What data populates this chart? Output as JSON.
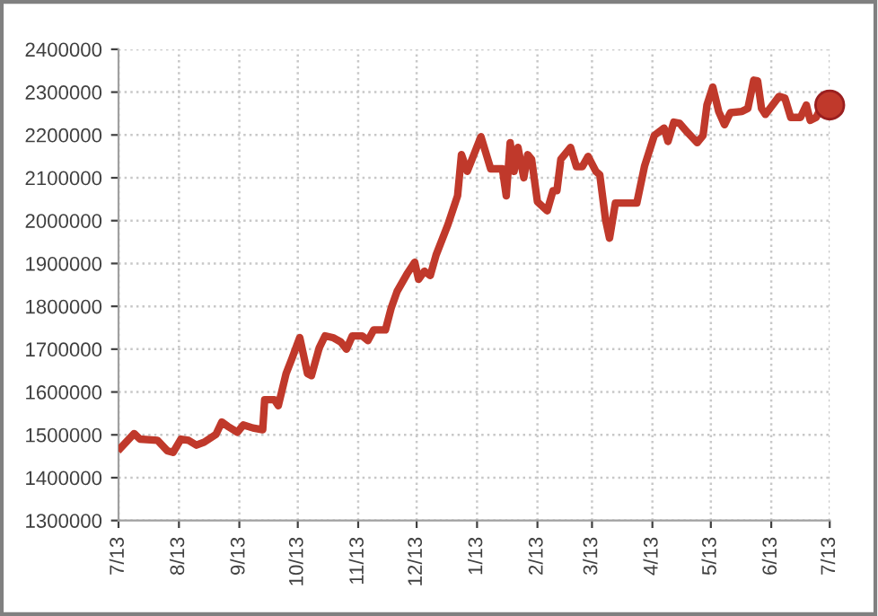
{
  "chart_data": {
    "type": "line",
    "xlim": [
      "2013-07-01",
      "2014-07-01"
    ],
    "ylim": [
      1300000,
      2400000
    ],
    "xticks": [
      {
        "value": "2013-07-01",
        "label": "7/13"
      },
      {
        "value": "2013-08-01",
        "label": "8/13"
      },
      {
        "value": "2013-09-01",
        "label": "9/13"
      },
      {
        "value": "2013-10-01",
        "label": "10/13"
      },
      {
        "value": "2013-11-01",
        "label": "11/13"
      },
      {
        "value": "2013-12-01",
        "label": "12/13"
      },
      {
        "value": "2014-01-01",
        "label": "1/13"
      },
      {
        "value": "2014-02-01",
        "label": "2/13"
      },
      {
        "value": "2014-03-01",
        "label": "3/13"
      },
      {
        "value": "2014-04-01",
        "label": "4/13"
      },
      {
        "value": "2014-05-01",
        "label": "5/13"
      },
      {
        "value": "2014-06-01",
        "label": "6/13"
      },
      {
        "value": "2014-07-01",
        "label": "7/13"
      }
    ],
    "yticks": [
      1300000,
      1400000,
      1500000,
      1600000,
      1700000,
      1800000,
      1900000,
      2000000,
      2100000,
      2200000,
      2300000,
      2400000
    ],
    "grid": true,
    "legend": false,
    "line_style": "solid",
    "series": [
      {
        "color": "#c0392b",
        "x": [
          "2013-07-02",
          "2013-07-09",
          "2013-07-12",
          "2013-07-21",
          "2013-07-26",
          "2013-07-29",
          "2013-08-02",
          "2013-08-06",
          "2013-08-10",
          "2013-08-14",
          "2013-08-20",
          "2013-08-23",
          "2013-08-26",
          "2013-08-31",
          "2013-09-03",
          "2013-09-08",
          "2013-09-13",
          "2013-09-14",
          "2013-09-19",
          "2013-09-21",
          "2013-09-25",
          "2013-09-28",
          "2013-10-02",
          "2013-10-06",
          "2013-10-08",
          "2013-10-12",
          "2013-10-15",
          "2013-10-19",
          "2013-10-23",
          "2013-10-26",
          "2013-10-29",
          "2013-11-03",
          "2013-11-06",
          "2013-11-09",
          "2013-11-15",
          "2013-11-18",
          "2013-11-21",
          "2013-11-26",
          "2013-11-30",
          "2013-12-02",
          "2013-12-05",
          "2013-12-08",
          "2013-12-11",
          "2013-12-17",
          "2013-12-22",
          "2013-12-24",
          "2013-12-27",
          "2014-01-03",
          "2014-01-08",
          "2014-01-14",
          "2014-01-16",
          "2014-01-18",
          "2014-01-20",
          "2014-01-22",
          "2014-01-25",
          "2014-01-27",
          "2014-01-29",
          "2014-02-01",
          "2014-02-06",
          "2014-02-09",
          "2014-02-11",
          "2014-02-13",
          "2014-02-18",
          "2014-02-21",
          "2014-02-24",
          "2014-02-27",
          "2014-03-03",
          "2014-03-05",
          "2014-03-08",
          "2014-03-10",
          "2014-03-13",
          "2014-03-24",
          "2014-03-28",
          "2014-04-02",
          "2014-04-07",
          "2014-04-09",
          "2014-04-12",
          "2014-04-15",
          "2014-04-19",
          "2014-04-24",
          "2014-04-27",
          "2014-04-29",
          "2014-05-02",
          "2014-05-05",
          "2014-05-08",
          "2014-05-11",
          "2014-05-17",
          "2014-05-20",
          "2014-05-23",
          "2014-05-25",
          "2014-05-27",
          "2014-05-29",
          "2014-06-05",
          "2014-06-08",
          "2014-06-11",
          "2014-06-16",
          "2014-06-19",
          "2014-06-21",
          "2014-06-24",
          "2014-06-27",
          "2014-07-01"
        ],
        "values": [
          1469000,
          1503000,
          1490000,
          1487000,
          1463000,
          1459000,
          1490000,
          1487000,
          1476000,
          1483000,
          1501000,
          1530000,
          1520000,
          1506000,
          1523000,
          1516000,
          1512000,
          1582000,
          1582000,
          1568000,
          1643000,
          1678000,
          1727000,
          1643000,
          1638000,
          1703000,
          1731000,
          1727000,
          1717000,
          1700000,
          1731000,
          1731000,
          1720000,
          1745000,
          1745000,
          1797000,
          1835000,
          1875000,
          1903000,
          1863000,
          1882000,
          1872000,
          1920000,
          1990000,
          2058000,
          2154000,
          2115000,
          2196000,
          2121000,
          2121000,
          2058000,
          2182000,
          2115000,
          2171000,
          2100000,
          2154000,
          2143000,
          2044000,
          2023000,
          2070000,
          2070000,
          2143000,
          2171000,
          2126000,
          2126000,
          2150000,
          2115000,
          2107000,
          2001000,
          1959000,
          2041000,
          2041000,
          2128000,
          2199000,
          2216000,
          2185000,
          2230000,
          2227000,
          2206000,
          2182000,
          2199000,
          2270000,
          2312000,
          2255000,
          2224000,
          2252000,
          2255000,
          2262000,
          2328000,
          2326000,
          2262000,
          2248000,
          2290000,
          2286000,
          2241000,
          2241000,
          2270000,
          2234000,
          2241000,
          2267000,
          2270000
        ]
      },
      {
        "type": "scatter",
        "color": "#c0392b",
        "marker": "circle",
        "x": [
          "2014-07-01"
        ],
        "values": [
          2270000
        ]
      }
    ]
  }
}
